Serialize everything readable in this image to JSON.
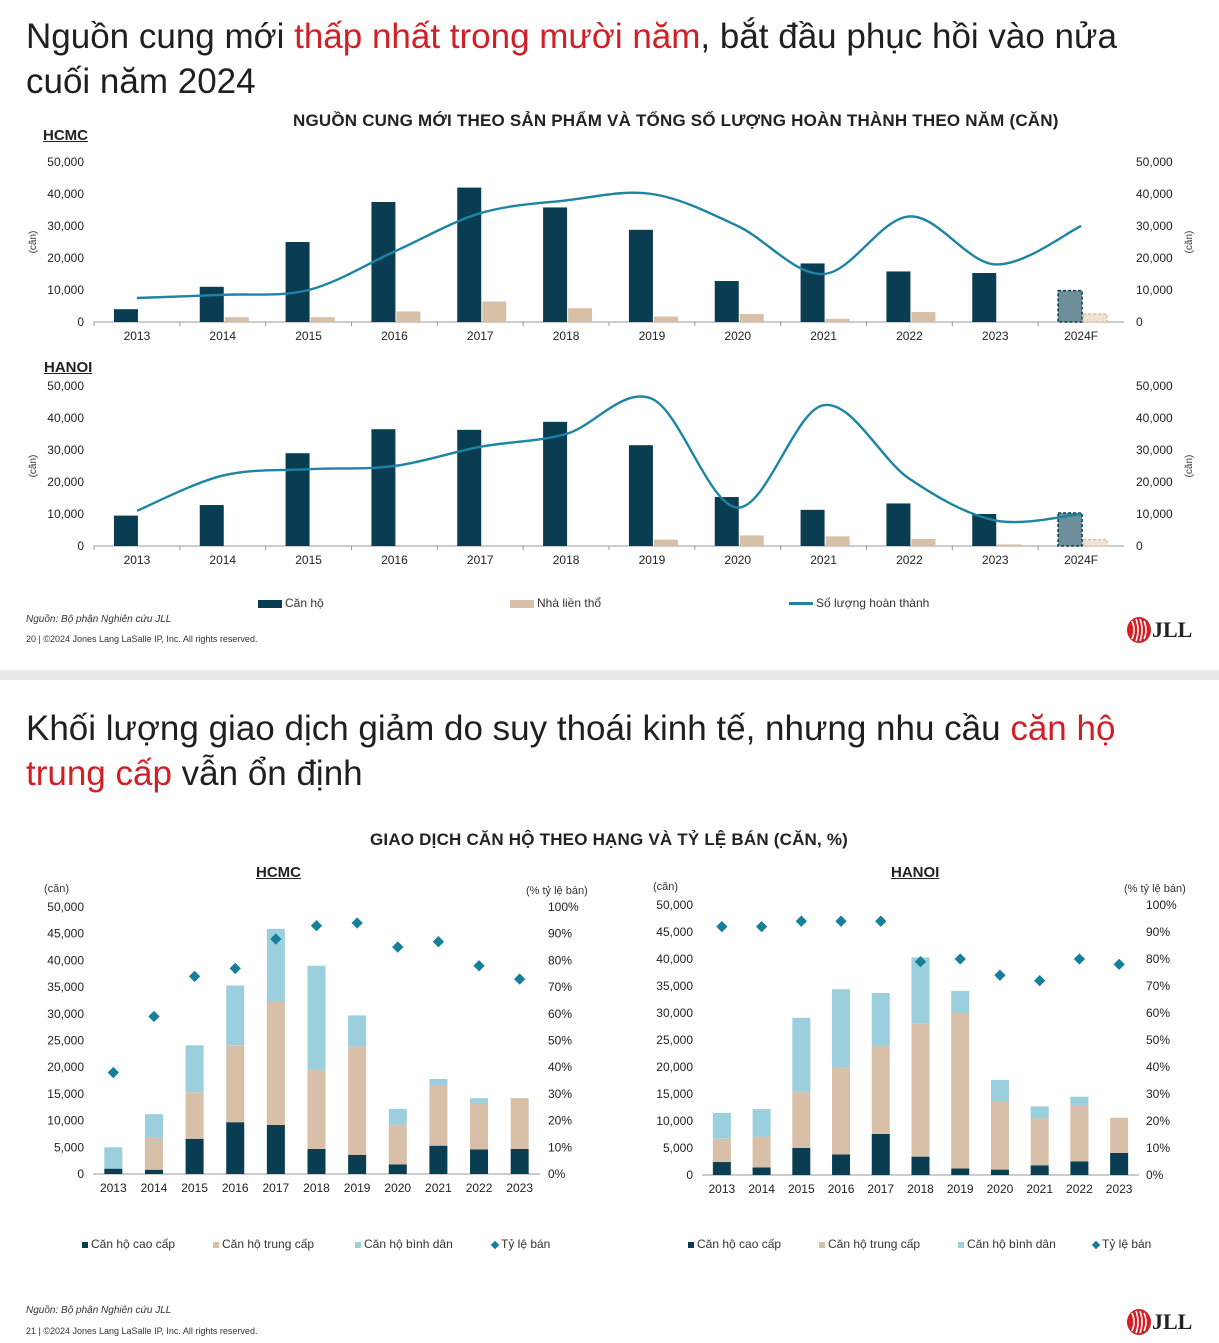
{
  "colors": {
    "dark": "#0a3d52",
    "beige": "#d8bfa7",
    "light": "#9ccfdd",
    "line": "#1d84a4",
    "diamond": "#167f9b",
    "red": "#d21f26"
  },
  "slide1": {
    "headline": {
      "part1": "Nguồn cung mới ",
      "highlight": "thấp nhất trong mười năm",
      "part2": ", bắt đầu phục hồi vào nửa cuối năm 2024"
    },
    "chart_title": "NGUỒN CUNG MỚI THEO SẢN PHẨM VÀ TỔNG SỐ LƯỢNG HOÀN THÀNH THEO NĂM (CĂN)",
    "source": "Nguồn: Bộ phận Nghiên cứu JLL",
    "footer": "20  |  ©2024 Jones Lang LaSalle IP, Inc. All rights reserved.",
    "logo": "JLL"
  },
  "slide2": {
    "headline": {
      "part1": "Khối lượng giao dịch giảm do suy thoái kinh tế, nhưng nhu cầu ",
      "highlight": "căn hộ trung cấp",
      "part2": " vẫn ổn định"
    },
    "chart_title": "GIAO DỊCH CĂN HỘ THEO HẠNG VÀ TỶ LỆ BÁN (CĂN, %)",
    "source": "Nguồn: Bộ phận Nghiên cứu JLL",
    "footer": "21  |  ©2024 Jones Lang LaSalle IP, Inc. All rights reserved.",
    "logo": "JLL"
  },
  "chart_data": [
    {
      "id": "supply-hcmc",
      "type": "bar",
      "title": "HCMC",
      "ylabel": "(căn)",
      "ylabel_right": "(căn)",
      "ylim": [
        0,
        50000
      ],
      "yticks": [
        "0",
        "10,000",
        "20,000",
        "30,000",
        "40,000",
        "50,000"
      ],
      "categories": [
        "2013",
        "2014",
        "2015",
        "2016",
        "2017",
        "2018",
        "2019",
        "2020",
        "2021",
        "2022",
        "2023",
        "2024F"
      ],
      "forecast_category": "2024F",
      "series": [
        {
          "name": "Căn hộ",
          "type": "bar",
          "values": [
            4000,
            11000,
            25000,
            37500,
            42000,
            35800,
            28800,
            12800,
            18300,
            15800,
            15300,
            9800
          ]
        },
        {
          "name": "Nhà liền thổ",
          "type": "bar",
          "values": [
            0,
            1500,
            1500,
            3300,
            6400,
            4300,
            1700,
            2500,
            1000,
            3100,
            0,
            2500
          ]
        },
        {
          "name": "Số lượng hoàn thành",
          "type": "line",
          "values": [
            7500,
            8500,
            10000,
            22000,
            34000,
            38000,
            40000,
            30000,
            15000,
            33000,
            18000,
            30000
          ]
        }
      ]
    },
    {
      "id": "supply-hanoi",
      "type": "bar",
      "title": "HANOI",
      "ylabel": "(căn)",
      "ylabel_right": "(căn)",
      "ylim": [
        0,
        50000
      ],
      "yticks": [
        "0",
        "10,000",
        "20,000",
        "30,000",
        "40,000",
        "50,000"
      ],
      "categories": [
        "2013",
        "2014",
        "2015",
        "2016",
        "2017",
        "2018",
        "2019",
        "2020",
        "2021",
        "2022",
        "2023",
        "2024F"
      ],
      "forecast_category": "2024F",
      "series": [
        {
          "name": "Căn hộ",
          "type": "bar",
          "values": [
            9500,
            12800,
            29000,
            36500,
            36300,
            38800,
            31500,
            15300,
            11300,
            13300,
            10000,
            10300
          ]
        },
        {
          "name": "Nhà liền thổ",
          "type": "bar",
          "values": [
            0,
            0,
            0,
            0,
            0,
            0,
            2000,
            3300,
            3000,
            2200,
            500,
            2000
          ]
        },
        {
          "name": "Số lượng hoàn thành",
          "type": "line",
          "values": [
            11000,
            22000,
            24000,
            25000,
            31000,
            35000,
            46000,
            12000,
            44000,
            21000,
            8000,
            10000
          ]
        }
      ]
    },
    {
      "id": "tx-hcmc",
      "type": "bar",
      "stacked": true,
      "title": "HCMC",
      "ylabel": "(căn)",
      "ylabel_right": "(% tỷ lệ bán)",
      "ylim": [
        0,
        50000
      ],
      "ylim_right": [
        0,
        100
      ],
      "yticks": [
        "0",
        "5,000",
        "10,000",
        "15,000",
        "20,000",
        "25,000",
        "30,000",
        "35,000",
        "40,000",
        "45,000",
        "50,000"
      ],
      "yticks_right": [
        "0%",
        "10%",
        "20%",
        "30%",
        "40%",
        "50%",
        "60%",
        "70%",
        "80%",
        "90%",
        "100%"
      ],
      "categories": [
        "2013",
        "2014",
        "2015",
        "2016",
        "2017",
        "2018",
        "2019",
        "2020",
        "2021",
        "2022",
        "2023"
      ],
      "series": [
        {
          "name": "Căn hộ cao cấp",
          "type": "bar",
          "values": [
            1000,
            800,
            6600,
            9700,
            9200,
            4700,
            3600,
            1800,
            5300,
            4600,
            4700
          ]
        },
        {
          "name": "Căn hộ trung cấp",
          "type": "bar",
          "values": [
            0,
            6000,
            8700,
            14400,
            23100,
            14800,
            20300,
            7400,
            11200,
            8700,
            9500
          ]
        },
        {
          "name": "Căn hộ bình dân",
          "type": "bar",
          "values": [
            4000,
            4400,
            8800,
            11200,
            13600,
            19500,
            5800,
            3000,
            1300,
            900,
            0
          ]
        },
        {
          "name": "Tỷ lệ bán",
          "type": "scatter",
          "axis": "right",
          "values": [
            38,
            59,
            74,
            77,
            88,
            93,
            94,
            85,
            87,
            78,
            73
          ]
        }
      ]
    },
    {
      "id": "tx-hanoi",
      "type": "bar",
      "stacked": true,
      "title": "HANOI",
      "ylabel": "(căn)",
      "ylabel_right": "(% tỷ lệ bán)",
      "ylim": [
        0,
        50000
      ],
      "ylim_right": [
        0,
        100
      ],
      "yticks": [
        "0",
        "5,000",
        "10,000",
        "15,000",
        "20,000",
        "25,000",
        "30,000",
        "35,000",
        "40,000",
        "45,000",
        "50,000"
      ],
      "yticks_right": [
        "0%",
        "10%",
        "20%",
        "30%",
        "40%",
        "50%",
        "60%",
        "70%",
        "80%",
        "90%",
        "100%"
      ],
      "categories": [
        "2013",
        "2014",
        "2015",
        "2016",
        "2017",
        "2018",
        "2019",
        "2020",
        "2021",
        "2022",
        "2023"
      ],
      "series": [
        {
          "name": "Căn hộ cao cấp",
          "type": "bar",
          "values": [
            2400,
            1400,
            5000,
            3800,
            7600,
            3400,
            1200,
            1000,
            1800,
            2500,
            4100
          ]
        },
        {
          "name": "Căn hộ trung cấp",
          "type": "bar",
          "values": [
            4300,
            5700,
            10400,
            16100,
            16300,
            24600,
            28800,
            12600,
            8700,
            10300,
            6500
          ]
        },
        {
          "name": "Căn hộ bình dân",
          "type": "bar",
          "values": [
            4800,
            5100,
            13700,
            14500,
            9800,
            12300,
            4100,
            4000,
            2200,
            1700,
            0
          ]
        },
        {
          "name": "Tỷ lệ bán",
          "type": "scatter",
          "axis": "right",
          "values": [
            92,
            92,
            94,
            94,
            94,
            79,
            80,
            74,
            72,
            80,
            78
          ]
        }
      ]
    }
  ]
}
